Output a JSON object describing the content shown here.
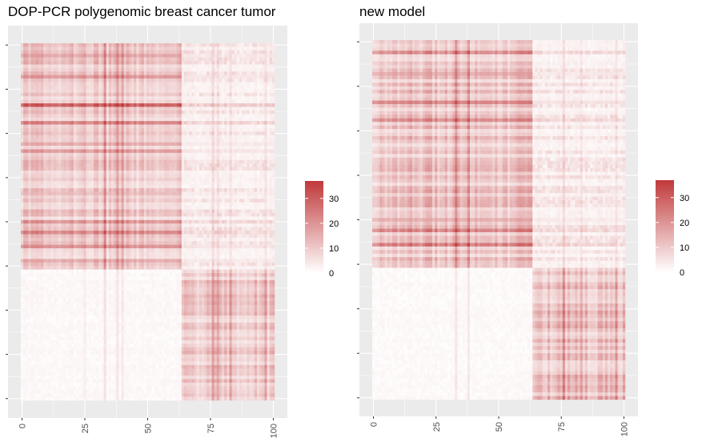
{
  "chart_data": [
    {
      "type": "heatmap",
      "title": "DOP-PCR polygenomic breast cancer tumor",
      "xlabel": "",
      "ylabel": "",
      "x_ticks": [
        "0",
        "25",
        "50",
        "75",
        "100"
      ],
      "xlim": [
        0,
        100
      ],
      "cluster_split": 64,
      "value_range": [
        0,
        37
      ],
      "legend": {
        "position": "right",
        "ticks": [
          "0",
          "10",
          "20",
          "30"
        ],
        "low_color": "#ffffff",
        "high_color": "#c0393b"
      },
      "bands": {
        "upper_left_base": 8.5,
        "upper_right_base": 1.5,
        "lower_left_base": 0.6,
        "lower_right_base": 9.0,
        "hot_rows": [
          {
            "row": 17,
            "value": 30
          },
          {
            "row": 22,
            "value": 22
          },
          {
            "row": 9,
            "value": 18
          },
          {
            "row": 28,
            "value": 15
          },
          {
            "row": 30,
            "value": 16
          },
          {
            "row": 3,
            "value": 14
          },
          {
            "row": 42,
            "value": 12
          },
          {
            "row": 53,
            "value": 18
          },
          {
            "row": 50,
            "value": 15
          },
          {
            "row": 57,
            "value": 22
          },
          {
            "row": 61,
            "value": 14
          }
        ],
        "hot_cols": [
          {
            "col": 33,
            "value": 22
          },
          {
            "col": 38,
            "value": 20
          },
          {
            "col": 40,
            "value": 14
          },
          {
            "col": 25,
            "value": 10
          },
          {
            "col": 76,
            "value": 24
          },
          {
            "col": 78,
            "value": 18
          },
          {
            "col": 83,
            "value": 12
          },
          {
            "col": 97,
            "value": 12
          }
        ]
      }
    },
    {
      "type": "heatmap",
      "title": "new model",
      "xlabel": "",
      "ylabel": "",
      "x_ticks": [
        "0",
        "25",
        "50",
        "75",
        "100"
      ],
      "xlim": [
        0,
        100
      ],
      "cluster_split": 64,
      "value_range": [
        0,
        37
      ],
      "legend": {
        "position": "right",
        "ticks": [
          "0",
          "10",
          "20",
          "30"
        ],
        "low_color": "#ffffff",
        "high_color": "#c0393b"
      },
      "bands": {
        "upper_left_base": 10.0,
        "upper_right_base": 1.5,
        "lower_left_base": 0.5,
        "lower_right_base": 11.0,
        "hot_rows": [
          {
            "row": 17,
            "value": 24
          },
          {
            "row": 9,
            "value": 16
          },
          {
            "row": 22,
            "value": 18
          },
          {
            "row": 3,
            "value": 14
          },
          {
            "row": 53,
            "value": 18
          },
          {
            "row": 50,
            "value": 15
          },
          {
            "row": 57,
            "value": 18
          }
        ],
        "hot_cols": [
          {
            "col": 33,
            "value": 18
          },
          {
            "col": 38,
            "value": 16
          },
          {
            "col": 76,
            "value": 20
          },
          {
            "col": 83,
            "value": 12
          },
          {
            "col": 97,
            "value": 12
          }
        ]
      }
    }
  ]
}
